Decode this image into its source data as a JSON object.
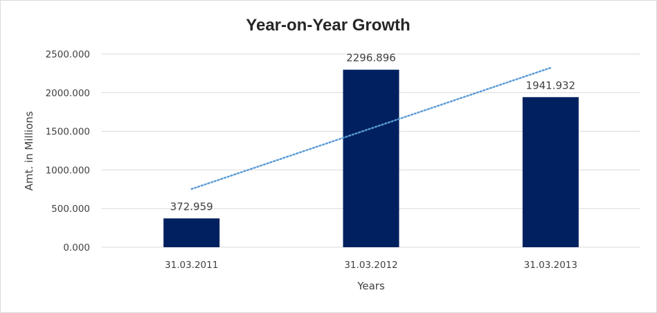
{
  "chart_data": {
    "type": "bar",
    "title": "Year-on-Year Growth",
    "xlabel": "Years",
    "ylabel": "Amt. in Millions",
    "categories": [
      "31.03.2011",
      "31.03.2012",
      "31.03.2013"
    ],
    "values": [
      372.959,
      2296.896,
      1941.932
    ],
    "data_labels": [
      "372.959",
      "2296.896",
      "1941.932"
    ],
    "ylim": [
      0,
      2500
    ],
    "yticks": [
      0,
      500,
      1000,
      1500,
      2000,
      2500
    ],
    "ytick_labels": [
      "0.000",
      "500.000",
      "1000.000",
      "1500.000",
      "2000.000",
      "2500.000"
    ],
    "grid": true,
    "legend": "none",
    "bar_color": "#002060",
    "trendline": {
      "type": "linear",
      "style": "dotted",
      "color": "#5B9BD5"
    }
  }
}
